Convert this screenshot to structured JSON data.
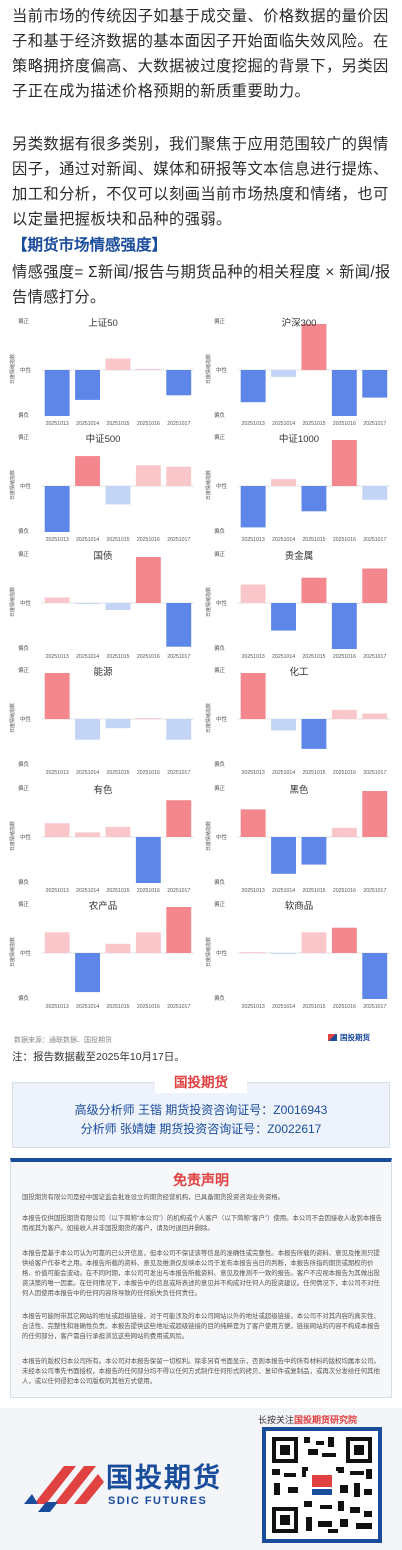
{
  "intro": {
    "p1": "当前市场的传统因子如基于成交量、价格数据的量价因子和基于经济数据的基本面因子开始面临失效风险。在策略拥挤度偏高、大数据被过度挖掘的背景下，另类因子正在成为描述价格预期的新质重要助力。",
    "p2": "另类数据有很多类别，我们聚焦于应用范围较广的舆情因子，通过对新闻、媒体和研报等文本信息进行提炼、加工和分析，不仅可以刻画当前市场热度和情绪，也可以定量把握板块和品种的强弱。"
  },
  "section_title": "【期货市场情感强度】",
  "formula": "情感强度= Σ新闻/报告与期货品种的相关程度 × 新闻/报告情感打分。",
  "axis": {
    "top": "偏正",
    "mid": "中性",
    "bottom": "偏负",
    "ylabel": "日度情绪指数"
  },
  "colors": {
    "pos_strong": "#f4868d",
    "pos_light": "#f9c6ca",
    "neg_strong": "#5d86e8",
    "neg_light": "#c3d4f6"
  },
  "chart_data": [
    {
      "type": "bar",
      "title": "上证50",
      "categories": [
        "20251013",
        "20251014",
        "20251015",
        "20251016",
        "20251017"
      ],
      "values": [
        -1.0,
        -0.65,
        0.25,
        0.02,
        -0.55
      ]
    },
    {
      "type": "bar",
      "title": "沪深300",
      "categories": [
        "20251013",
        "20251014",
        "20251015",
        "20251016",
        "20251017"
      ],
      "values": [
        -0.7,
        -0.15,
        1.0,
        -1.0,
        -0.6
      ]
    },
    {
      "type": "bar",
      "title": "中证500",
      "categories": [
        "20251013",
        "20251014",
        "20251015",
        "20251016",
        "20251017"
      ],
      "values": [
        -1.0,
        0.65,
        -0.4,
        0.45,
        0.42
      ]
    },
    {
      "type": "bar",
      "title": "中证1000",
      "categories": [
        "20251013",
        "20251014",
        "20251015",
        "20251016",
        "20251017"
      ],
      "values": [
        -0.9,
        0.15,
        -0.55,
        1.0,
        -0.3
      ]
    },
    {
      "type": "bar",
      "title": "国债",
      "categories": [
        "20251013",
        "20251014",
        "20251015",
        "20251016",
        "20251017"
      ],
      "values": [
        0.12,
        -0.02,
        -0.15,
        1.0,
        -0.95
      ]
    },
    {
      "type": "bar",
      "title": "贵金属",
      "categories": [
        "20251013",
        "20251014",
        "20251015",
        "20251016",
        "20251017"
      ],
      "values": [
        0.4,
        -0.6,
        0.55,
        -1.0,
        0.75
      ]
    },
    {
      "type": "bar",
      "title": "能源",
      "categories": [
        "20251013",
        "20251014",
        "20251015",
        "20251016",
        "20251017"
      ],
      "values": [
        1.0,
        -0.45,
        -0.2,
        0.02,
        -0.45
      ]
    },
    {
      "type": "bar",
      "title": "化工",
      "categories": [
        "20251013",
        "20251014",
        "20251015",
        "20251016",
        "20251017"
      ],
      "values": [
        1.0,
        -0.25,
        -0.65,
        0.2,
        0.12
      ]
    },
    {
      "type": "bar",
      "title": "有色",
      "categories": [
        "20251013",
        "20251014",
        "20251015",
        "20251016",
        "20251017"
      ],
      "values": [
        0.3,
        0.1,
        0.22,
        -1.0,
        0.8
      ]
    },
    {
      "type": "bar",
      "title": "黑色",
      "categories": [
        "20251013",
        "20251014",
        "20251015",
        "20251016",
        "20251017"
      ],
      "values": [
        0.6,
        -0.8,
        -0.6,
        0.2,
        1.0
      ]
    },
    {
      "type": "bar",
      "title": "农产品",
      "categories": [
        "20251013",
        "20251014",
        "20251015",
        "20251016",
        "20251017"
      ],
      "values": [
        0.45,
        -0.85,
        0.2,
        0.45,
        1.0
      ]
    },
    {
      "type": "bar",
      "title": "软商品",
      "categories": [
        "20251013",
        "20251014",
        "20251015",
        "20251016",
        "20251017"
      ],
      "values": [
        0.02,
        -0.02,
        0.45,
        0.55,
        -1.0
      ]
    }
  ],
  "source": "数据来源：通联数据、国投期货",
  "small_logo": "国投期货",
  "note": "注：报告数据截至2025年10月17日。",
  "analysts": {
    "tag": "国投期货",
    "line1": "高级分析师  王锴  期货投资咨询证号：Z0016943",
    "line2": "分析师  张婧婕  期货投资咨询证号：Z0022617"
  },
  "disclaimer": {
    "title": "免责声明",
    "p1": "国投期货有限公司是经中国证监会批准设立的期货经营机构，已具备期货投资咨询业务资格。",
    "p2": "本报告仅供国投期货有限公司（以下简称“本公司”）的机构或个人客户（以下简称“客户”）使用。本公司不会因接收人收到本报告而视其为客户。如接收人并非国投期货的客户，请及时退回并删除。",
    "p3": "本报告是基于本公司认为可靠的已公开信息，但本公司不保证该等信息的准确性或完整性。本报告所载的资料、意见及推测只提供给客户作参考之用。本报告所载的资料、意见及推测仅反映本公司于发布本报告当日的判断，本报告所指的期货或期权的价格、价值可能会波动。在不同时期，本公司可发出与本报告所载资料、意见及推测不一致的报告。客户不应视本报告为其做出投资决策的唯一因素。在任何情况下，本报告中的信息或所表述的意见并不构成对任何人的投资建议。任何情况下，本公司不对任何人因使用本报告中的任何内容所导致的任何损失负任何责任。",
    "p4": "本报告可能附带其它网站的地址或超级链接，对于可能涉及的本公司网站以外的地址或超级链接，本公司不对其内容的真实性、合法性、完整性和准确性负责。本报告提供这些地址或超级链接的目的纯粹是为了客户使用方便，链接网站的内容不构成本报告的任何部分，客户需自行承担浏览这些网站的费用或风险。",
    "p5": "本报告的版权归本公司所有。本公司对本报告保留一切权利。除非另有书面显示，否则本报告中的所有材料的版权均属本公司。未经本公司事先书面授权，本报告的任何部分均不得以任何方式制作任何形式的拷贝、复印件或复制品，或再次分发给任何其他人，或以任何侵犯本公司版权的其他方式使用。"
  },
  "footer": {
    "follow_prefix": "长按关注",
    "follow_name": "国投期货研究院",
    "brand_cn": "国投期货",
    "brand_en": "SDIC FUTURES"
  }
}
